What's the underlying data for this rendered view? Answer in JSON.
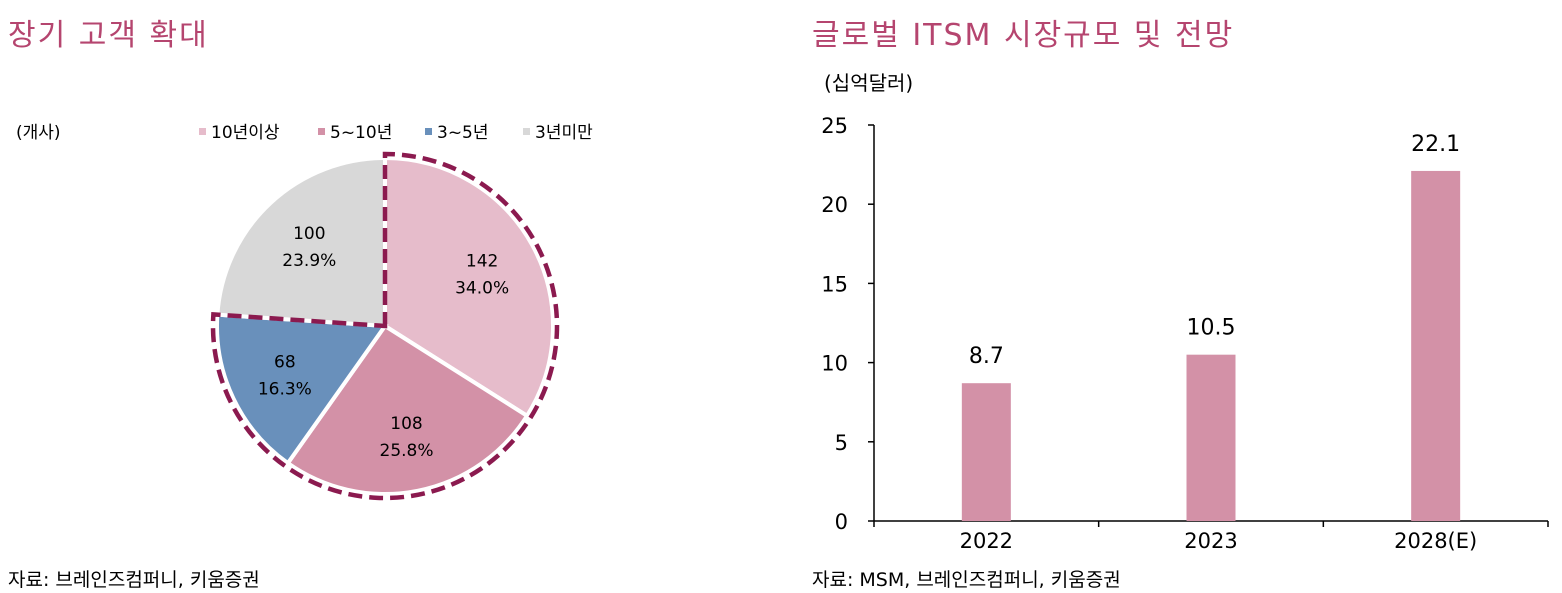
{
  "left_title": "장기 고객 확대",
  "right_title": "글로벌 ITSM 시장규모 및 전망",
  "left_source": "자료: 브레인즈컴퍼니, 키움증권",
  "right_source": "자료: MSM, 브레인즈컴퍼니, 키움증권",
  "chart_data": [
    {
      "type": "pie",
      "unit_label": "(개사)",
      "slices": [
        {
          "name": "10년이상",
          "value": 142,
          "percent": "34.0%",
          "color": "#e6bccb",
          "highlighted": true
        },
        {
          "name": "5~10년",
          "value": 108,
          "percent": "25.8%",
          "color": "#d391a7",
          "highlighted": true
        },
        {
          "name": "3~5년",
          "value": 68,
          "percent": "16.3%",
          "color": "#6990bb",
          "highlighted": true
        },
        {
          "name": "3년미만",
          "value": 100,
          "percent": "23.9%",
          "color": "#d8d8d8",
          "highlighted": false
        }
      ],
      "legend_position": "top",
      "highlight_color": "#8b1a4f"
    },
    {
      "type": "bar",
      "ylabel": "(십억달러)",
      "categories": [
        "2022",
        "2023",
        "2028(E)"
      ],
      "values": [
        8.7,
        10.5,
        22.1
      ],
      "value_labels": [
        "8.7",
        "10.5",
        "22.1"
      ],
      "ylim": [
        0,
        25
      ],
      "yticks": [
        "0",
        "5",
        "10",
        "15",
        "20",
        "25"
      ],
      "bar_color": "#d391a7",
      "grid": false
    }
  ]
}
